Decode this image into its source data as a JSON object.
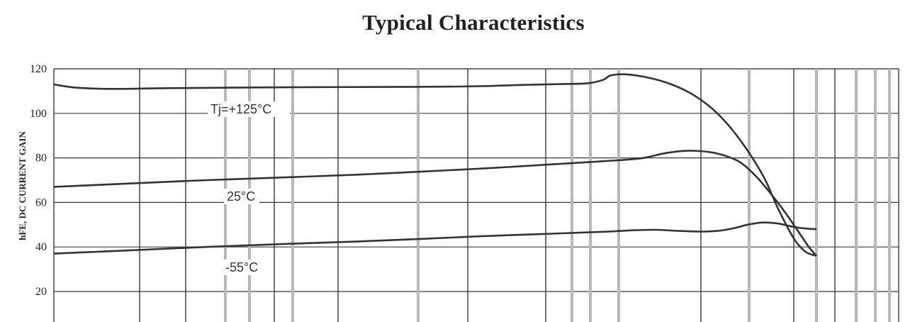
{
  "chart_data": {
    "type": "line",
    "title": "Typical Characteristics",
    "ylabel": "hFE, DC CURRENT GAIN",
    "xlabel": "",
    "ylim": [
      20,
      120
    ],
    "xscale": "log",
    "yticks": [
      20,
      40,
      60,
      80,
      100,
      120
    ],
    "grid": true,
    "colors": {
      "curve": "#333333",
      "grid_dark": "#3a3a3a",
      "grid_light": "#b8b8b8"
    },
    "series": [
      {
        "name": "Tj=+125°C",
        "points": [
          [
            0.0,
            113
          ],
          [
            0.03,
            111.5
          ],
          [
            0.08,
            111
          ],
          [
            0.15,
            111.3
          ],
          [
            0.3,
            111.7
          ],
          [
            0.48,
            111.9
          ],
          [
            0.56,
            112.2
          ],
          [
            0.62,
            112.8
          ],
          [
            0.67,
            113.2
          ],
          [
            0.7,
            113.5
          ],
          [
            0.72,
            115
          ],
          [
            0.73,
            117
          ],
          [
            0.75,
            117.5
          ],
          [
            0.78,
            116
          ],
          [
            0.81,
            113
          ],
          [
            0.84,
            108
          ],
          [
            0.87,
            100
          ],
          [
            0.9,
            88
          ],
          [
            0.93,
            72
          ],
          [
            0.95,
            57
          ],
          [
            0.97,
            44
          ],
          [
            0.985,
            38
          ],
          [
            1.0,
            36
          ]
        ]
      },
      {
        "name": "25°C",
        "points": [
          [
            0.0,
            67
          ],
          [
            0.1,
            68.5
          ],
          [
            0.2,
            70
          ],
          [
            0.3,
            71.2
          ],
          [
            0.4,
            72.5
          ],
          [
            0.48,
            73.8
          ],
          [
            0.56,
            75.2
          ],
          [
            0.64,
            76.8
          ],
          [
            0.72,
            78.5
          ],
          [
            0.77,
            79.8
          ],
          [
            0.8,
            82
          ],
          [
            0.83,
            83.2
          ],
          [
            0.86,
            82.6
          ],
          [
            0.88,
            81
          ],
          [
            0.9,
            78
          ],
          [
            0.92,
            72
          ],
          [
            0.94,
            64
          ],
          [
            0.96,
            55
          ],
          [
            0.98,
            45
          ],
          [
            0.99,
            40
          ],
          [
            1.0,
            36
          ]
        ]
      },
      {
        "name": "-55°C",
        "points": [
          [
            0.0,
            37
          ],
          [
            0.1,
            38.5
          ],
          [
            0.2,
            40
          ],
          [
            0.3,
            41.3
          ],
          [
            0.4,
            42.5
          ],
          [
            0.48,
            43.6
          ],
          [
            0.56,
            44.8
          ],
          [
            0.64,
            45.8
          ],
          [
            0.72,
            46.8
          ],
          [
            0.76,
            47.5
          ],
          [
            0.79,
            47.7
          ],
          [
            0.82,
            47.2
          ],
          [
            0.85,
            46.9
          ],
          [
            0.87,
            47.2
          ],
          [
            0.89,
            48.3
          ],
          [
            0.91,
            50
          ],
          [
            0.93,
            51
          ],
          [
            0.95,
            50.5
          ],
          [
            0.97,
            49
          ],
          [
            0.985,
            48.3
          ],
          [
            1.0,
            48
          ]
        ]
      }
    ],
    "curve_labels": [
      "Tj=+125°C",
      "25°C",
      "-55°C"
    ]
  }
}
